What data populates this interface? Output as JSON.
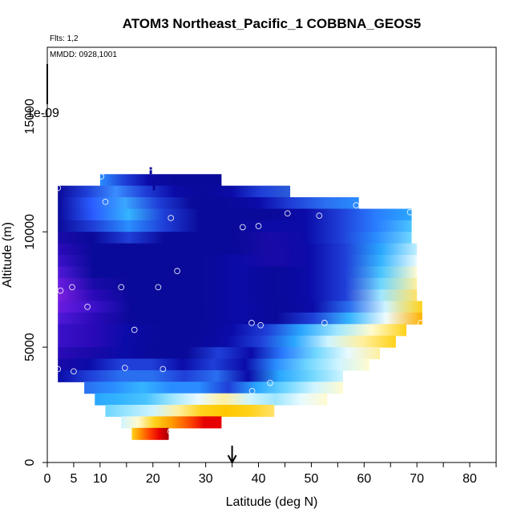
{
  "chart_data": {
    "type": "heatmap",
    "title": "ATOM3 Northeast_Pacific_1 COBBNA_GEOS5",
    "subtitle_flights": "Flts: 1,2",
    "subtitle_dates": "MMDD: 0928,1001",
    "colorbar_label": "1e-09",
    "xlabel": "Latitude (deg N)",
    "ylabel": "Altitude (m)",
    "xlim": [
      0,
      85
    ],
    "ylim": [
      0,
      18000
    ],
    "x_ticks": [
      0,
      5,
      10,
      15,
      20,
      25,
      30,
      35,
      40,
      45,
      50,
      55,
      60,
      65,
      70,
      75,
      80,
      85
    ],
    "x_tick_labels": [
      "0",
      "5",
      "10",
      "",
      "20",
      "",
      "30",
      "",
      "40",
      "",
      "50",
      "",
      "60",
      "",
      "70",
      "",
      "80",
      ""
    ],
    "y_ticks": [
      0,
      5000,
      10000,
      15000
    ],
    "y_tick_labels": [
      "0",
      "5000",
      "10000",
      "15000"
    ],
    "arrow_latitude": 35,
    "colors": {
      "deep_purple": "#7b1fe0",
      "navy": "#0a0a9a",
      "blue": "#1f3fd8",
      "light_blue": "#2aa7ff",
      "cyan": "#9fe6ff",
      "pale": "#fffbd0",
      "yellow": "#ffd21a",
      "orange": "#ff7a00",
      "red": "#e60000",
      "dark_red": "#a80000"
    },
    "bands": [
      {
        "alt": [
          12000,
          12500
        ],
        "lat_start": 10,
        "lat_end": 33,
        "colors": [
          "#2a8dff",
          "#1f3fd8",
          "#0b0ba8",
          "#0a0a9a",
          "#0a0a9a",
          "#0a0a9a"
        ]
      },
      {
        "alt": [
          11500,
          12000
        ],
        "lat_start": 2,
        "lat_end": 46,
        "colors": [
          "#0a0a9a",
          "#1f3fd8",
          "#3a8cff",
          "#1f3fd8",
          "#0b0ba8",
          "#0a0a9a",
          "#0b0ba8",
          "#1f3fd8",
          "#2a5cd8"
        ]
      },
      {
        "alt": [
          11000,
          11500
        ],
        "lat_start": 2,
        "lat_end": 59,
        "colors": [
          "#0a0a9a",
          "#2a5cff",
          "#3aa6ff",
          "#1f3fd8",
          "#0a0a9a",
          "#0a0a9a",
          "#0b0ba8",
          "#1f3fd8",
          "#2a6ff0",
          "#2a8dff"
        ]
      },
      {
        "alt": [
          10500,
          11000
        ],
        "lat_start": 2,
        "lat_end": 69,
        "colors": [
          "#0a0a9a",
          "#2a5cff",
          "#35b4ff",
          "#1f3fd8",
          "#0a0a9a",
          "#0a0a9a",
          "#0a0a9a",
          "#0b0ba8",
          "#1f3fd8",
          "#2a7dff",
          "#2aa7ff"
        ]
      },
      {
        "alt": [
          10000,
          10500
        ],
        "lat_start": 2,
        "lat_end": 69,
        "colors": [
          "#0a0a9a",
          "#1f3fd8",
          "#2a8dff",
          "#1f3fd8",
          "#0a0a9a",
          "#0a0a9a",
          "#0b0ba8",
          "#0b0ba8",
          "#1f3fd8",
          "#2a7dff",
          "#4ac4ff"
        ]
      },
      {
        "alt": [
          9500,
          10000
        ],
        "lat_start": 2,
        "lat_end": 69,
        "colors": [
          "#1a0aa8",
          "#0a0a9a",
          "#1f3fd8",
          "#0a0a9a",
          "#0a0a9a",
          "#0a0a9a",
          "#1a0aa8",
          "#0b0ba8",
          "#1f3fd8",
          "#2a8dff",
          "#6fd6ff"
        ]
      },
      {
        "alt": [
          9000,
          9500
        ],
        "lat_start": 2,
        "lat_end": 70,
        "colors": [
          "#2a0ab8",
          "#0a0a9a",
          "#0a0a9a",
          "#0a0a9a",
          "#0a0a9a",
          "#0a0a9a",
          "#1a0aa8",
          "#0b0ba8",
          "#1f3fd8",
          "#2aa7ff",
          "#bff0ff"
        ]
      },
      {
        "alt": [
          8500,
          9000
        ],
        "lat_start": 2,
        "lat_end": 70,
        "colors": [
          "#3a10c8",
          "#0a0a9a",
          "#0a0a9a",
          "#0a0a9a",
          "#0a0a9a",
          "#0b0ba8",
          "#1a0aa8",
          "#0b0ba8",
          "#1f3fd8",
          "#35b4ff",
          "#e8faff"
        ]
      },
      {
        "alt": [
          8000,
          8500
        ],
        "lat_start": 2,
        "lat_end": 70,
        "colors": [
          "#5018d8",
          "#0a0a9a",
          "#0a0a9a",
          "#0a0a9a",
          "#0a0a9a",
          "#0b0ba8",
          "#0a0a9a",
          "#0b0ba8",
          "#1f3fd8",
          "#4ac4ff",
          "#fffbd0"
        ]
      },
      {
        "alt": [
          7500,
          8000
        ],
        "lat_start": 2,
        "lat_end": 70,
        "colors": [
          "#6a1ce0",
          "#1a0aa8",
          "#0a0a9a",
          "#0a0a9a",
          "#0a0a9a",
          "#0b0ba8",
          "#0a0a9a",
          "#0b0ba8",
          "#1f3fd8",
          "#6fd6ff",
          "#fff0a0"
        ]
      },
      {
        "alt": [
          7000,
          7500
        ],
        "lat_start": 2,
        "lat_end": 70,
        "colors": [
          "#7b1fe0",
          "#2a0ab8",
          "#0a0a9a",
          "#0a0a9a",
          "#0a0a9a",
          "#0b0ba8",
          "#0a0a9a",
          "#0b0ba8",
          "#1f3fd8",
          "#9fe6ff",
          "#ffe26a"
        ]
      },
      {
        "alt": [
          6500,
          7000
        ],
        "lat_start": 2,
        "lat_end": 71,
        "colors": [
          "#6a1ce0",
          "#3a10c8",
          "#0a0a9a",
          "#0a0a9a",
          "#0a0a9a",
          "#0b0ba8",
          "#0a0a9a",
          "#0b0ba8",
          "#2a6ff0",
          "#cff4ff",
          "#ffd21a"
        ]
      },
      {
        "alt": [
          6000,
          6500
        ],
        "lat_start": 2,
        "lat_end": 71,
        "colors": [
          "#5018d8",
          "#2a0ab8",
          "#0a0a9a",
          "#0a0a9a",
          "#0a0a9a",
          "#0b0ba8",
          "#0a0a9a",
          "#1f3fd8",
          "#35b4ff",
          "#eefbff",
          "#ffb000"
        ]
      },
      {
        "alt": [
          5500,
          6000
        ],
        "lat_start": 2,
        "lat_end": 68,
        "colors": [
          "#3a10c8",
          "#2a0ab8",
          "#0b0ba8",
          "#0a0a9a",
          "#0a0a9a",
          "#0b0ba8",
          "#1f3fd8",
          "#2aa7ff",
          "#9fe6ff",
          "#fffbd0",
          "#ffd21a"
        ]
      },
      {
        "alt": [
          5000,
          5500
        ],
        "lat_start": 2,
        "lat_end": 66,
        "colors": [
          "#3a10c8",
          "#2a0ab8",
          "#0b0ba8",
          "#0a0a9a",
          "#0a0a9a",
          "#0b0ba8",
          "#1f3fd8",
          "#2aa7ff",
          "#cff4ff",
          "#fff0a0",
          "#ffd21a"
        ]
      },
      {
        "alt": [
          4500,
          5000
        ],
        "lat_start": 2,
        "lat_end": 63,
        "colors": [
          "#2a0ab8",
          "#1a0aa8",
          "#0b0ba8",
          "#0a0a9a",
          "#0a0a9a",
          "#1f3fd8",
          "#0b0ba8",
          "#2a7dff",
          "#6fd6ff",
          "#e8faff",
          "#fff0a0"
        ]
      },
      {
        "alt": [
          4000,
          4500
        ],
        "lat_start": 2,
        "lat_end": 61,
        "colors": [
          "#1a0aa8",
          "#0b0ba8",
          "#1f3fd8",
          "#1f3fd8",
          "#0b0ba8",
          "#1f3fd8",
          "#0b0ba8",
          "#2a8dff",
          "#6fd6ff",
          "#cff4ff",
          "#fffbd0"
        ]
      },
      {
        "alt": [
          3500,
          4000
        ],
        "lat_start": 2,
        "lat_end": 56,
        "colors": [
          "#0b0ba8",
          "#1f3fd8",
          "#2a6ff0",
          "#2a6ff0",
          "#1f3fd8",
          "#2a6ff0",
          "#0b0ba8",
          "#2aa7ff",
          "#6fd6ff",
          "#cff4ff"
        ]
      },
      {
        "alt": [
          3000,
          3500
        ],
        "lat_start": 7,
        "lat_end": 56,
        "colors": [
          "#2a6ff0",
          "#2a8dff",
          "#35b4ff",
          "#2a8dff",
          "#2a8dff",
          "#1f3fd8",
          "#2aa7ff",
          "#6fd6ff",
          "#cff4ff",
          "#fffbd0"
        ]
      },
      {
        "alt": [
          2500,
          3000
        ],
        "lat_start": 9,
        "lat_end": 53,
        "colors": [
          "#2aa7ff",
          "#35b4ff",
          "#4ac4ff",
          "#9fe6ff",
          "#e8faff",
          "#fff0a0",
          "#cff4ff",
          "#9fe6ff",
          "#e8faff",
          "#fffbd0"
        ]
      },
      {
        "alt": [
          2000,
          2500
        ],
        "lat_start": 11,
        "lat_end": 43,
        "colors": [
          "#6fd6ff",
          "#9fe6ff",
          "#cff4ff",
          "#fff0a0",
          "#ffd21a",
          "#ffc800",
          "#ffd21a",
          "#ffe26a"
        ]
      },
      {
        "alt": [
          1500,
          2000
        ],
        "lat_start": 14,
        "lat_end": 33,
        "colors": [
          "#cff4ff",
          "#fffbd0",
          "#ffd21a",
          "#ff9c00",
          "#ff5000",
          "#e60000",
          "#e60000"
        ]
      },
      {
        "alt": [
          1000,
          1500
        ],
        "lat_start": 16,
        "lat_end": 23,
        "colors": [
          "#ffd21a",
          "#ff8a00",
          "#ff3c00",
          "#e60000",
          "#a80000"
        ]
      }
    ],
    "spikes": [
      {
        "lat": 19.6,
        "alt_from": 12500,
        "alt_to": 12800
      },
      {
        "lat": 20.2,
        "alt_from": 11800,
        "alt_to": 12200
      }
    ],
    "sample_points": [
      [
        2,
        11900
      ],
      [
        10.2,
        12400
      ],
      [
        19.6,
        12800
      ],
      [
        11,
        11300
      ],
      [
        23.4,
        10600
      ],
      [
        37,
        10200
      ],
      [
        40,
        10250
      ],
      [
        45.5,
        10800
      ],
      [
        51.5,
        10700
      ],
      [
        58.5,
        11150
      ],
      [
        68.7,
        10850
      ],
      [
        24.6,
        8300
      ],
      [
        4.7,
        7600
      ],
      [
        2.5,
        7450
      ],
      [
        14,
        7600
      ],
      [
        21,
        7600
      ],
      [
        7.6,
        6750
      ],
      [
        16.5,
        5750
      ],
      [
        38.7,
        6050
      ],
      [
        40.4,
        5950
      ],
      [
        52.5,
        6050
      ],
      [
        70.7,
        6050
      ],
      [
        2,
        4050
      ],
      [
        5,
        3950
      ],
      [
        14.7,
        4100
      ],
      [
        21.9,
        4050
      ],
      [
        42.2,
        3450
      ],
      [
        38.8,
        3100
      ],
      [
        23.3,
        1350
      ]
    ]
  }
}
